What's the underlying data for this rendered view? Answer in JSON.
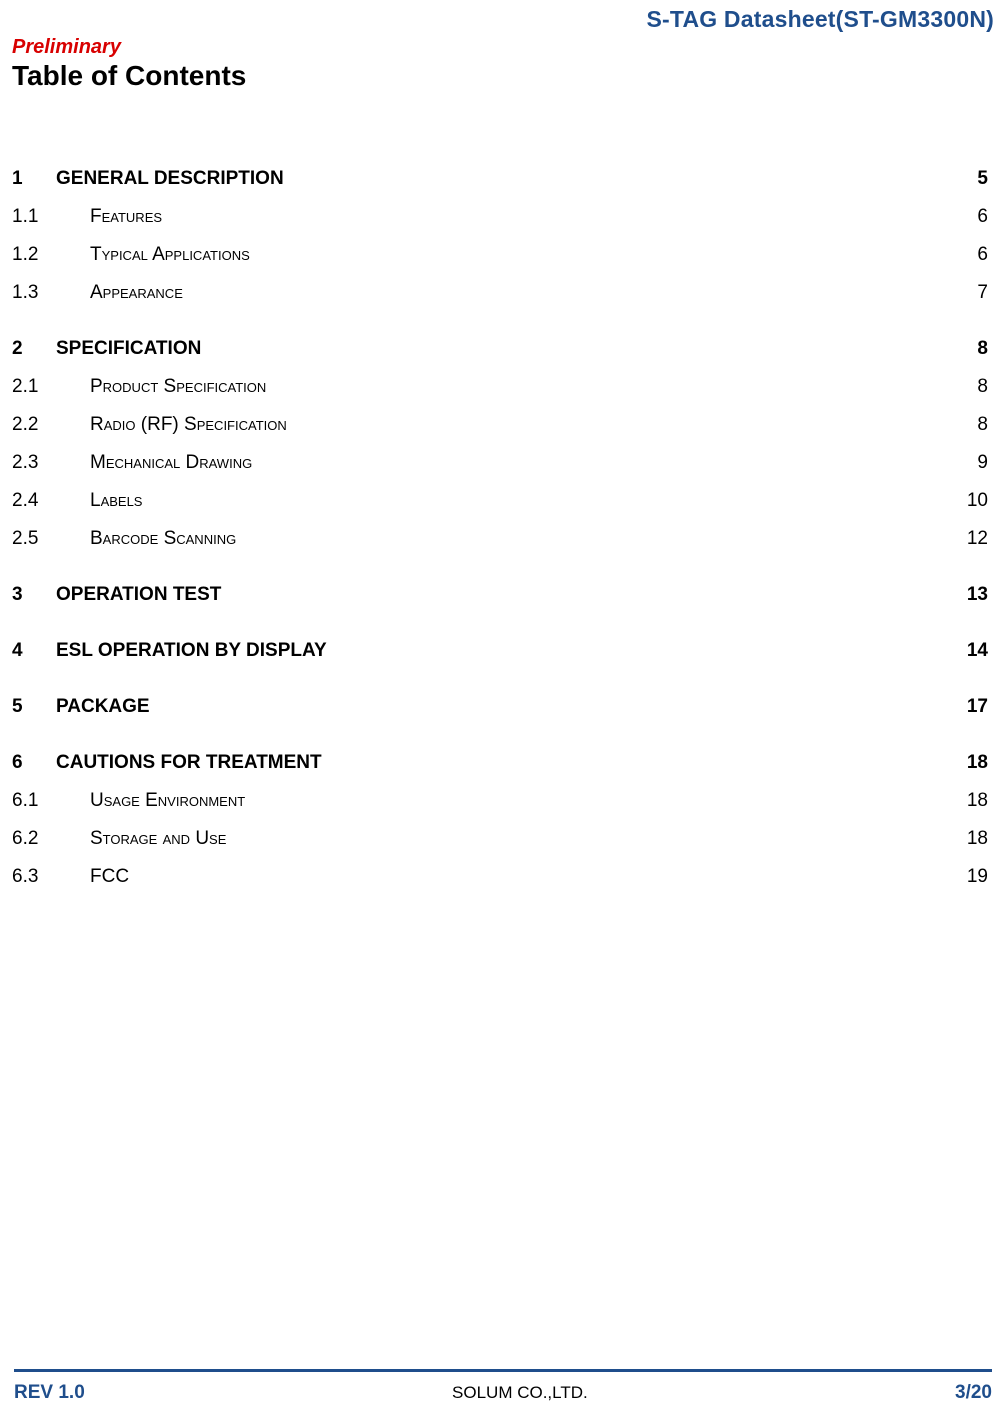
{
  "header": {
    "doc_title": "S-TAG Datasheet(ST-GM3300N)",
    "status": "Preliminary",
    "toc_heading": "Table of Contents"
  },
  "colors": {
    "primary": "#1f4e8c",
    "accent": "#d80000",
    "text": "#000000",
    "background": "#ffffff"
  },
  "typography": {
    "header_fontsize": 23,
    "preliminary_fontsize": 20,
    "heading_fontsize": 28,
    "toc_fontsize": 19,
    "footer_fontsize": 19
  },
  "toc": [
    {
      "level": 1,
      "num": "1",
      "label": "GENERAL DESCRIPTION",
      "page": "5"
    },
    {
      "level": 2,
      "num": "1.1",
      "label": "Features",
      "page": "6"
    },
    {
      "level": 2,
      "num": "1.2",
      "label": "Typical Applications",
      "page": "6"
    },
    {
      "level": 2,
      "num": "1.3",
      "label": "Appearance",
      "page": "7"
    },
    {
      "level": 1,
      "num": "2",
      "label": "SPECIFICATION",
      "page": "8"
    },
    {
      "level": 2,
      "num": "2.1",
      "label": "Product Specification",
      "page": "8"
    },
    {
      "level": 2,
      "num": "2.2",
      "label": "Radio (RF) Specification",
      "page": "8"
    },
    {
      "level": 2,
      "num": "2.3",
      "label": "Mechanical Drawing",
      "page": "9"
    },
    {
      "level": 2,
      "num": "2.4",
      "label": "Labels",
      "page": "10"
    },
    {
      "level": 2,
      "num": "2.5",
      "label": "Barcode Scanning",
      "page": "12"
    },
    {
      "level": 1,
      "num": "3",
      "label": "OPERATION TEST",
      "page": "13"
    },
    {
      "level": 1,
      "num": "4",
      "label": "ESL OPERATION BY DISPLAY",
      "page": "14"
    },
    {
      "level": 1,
      "num": "5",
      "label": "PACKAGE",
      "page": "17"
    },
    {
      "level": 1,
      "num": "6",
      "label": "CAUTIONS FOR TREATMENT",
      "page": "18"
    },
    {
      "level": 2,
      "num": "6.1",
      "label": "Usage Environment",
      "page": "18"
    },
    {
      "level": 2,
      "num": "6.2",
      "label": "Storage and Use",
      "page": "18"
    },
    {
      "level": 2,
      "num": "6.3",
      "label": "FCC",
      "page": "19"
    }
  ],
  "footer": {
    "rev": "REV 1.0",
    "company": "SOLUM CO.,LTD.",
    "page": "3/20"
  }
}
